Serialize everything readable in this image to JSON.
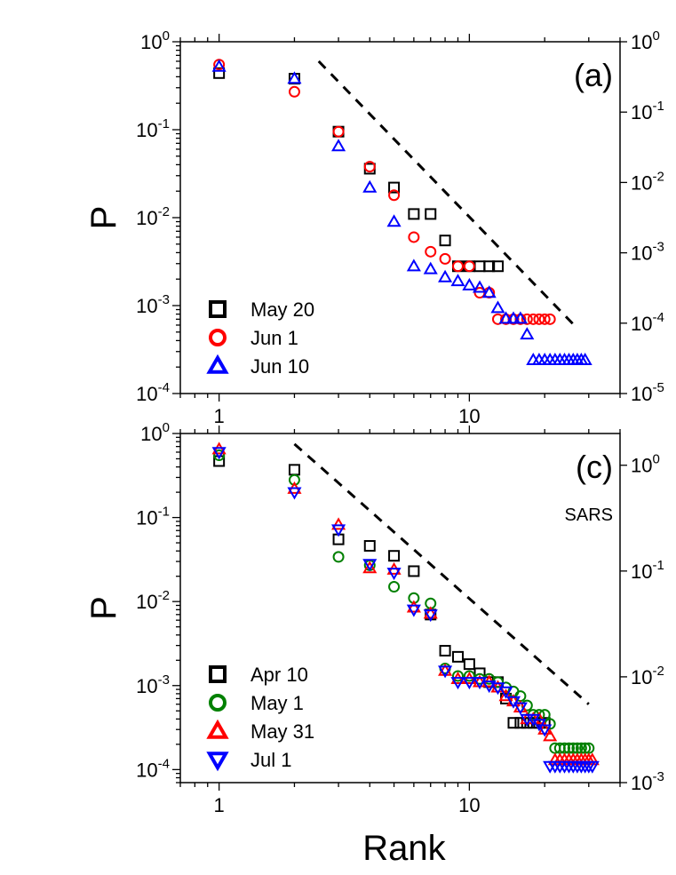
{
  "figure": {
    "xlabel": "Rank"
  },
  "chart_data": [
    {
      "panel": "(a)",
      "type": "scatter",
      "xscale": "log",
      "yscale": "log",
      "xlim": [
        0.7,
        40
      ],
      "ylim": [
        0.0001,
        1
      ],
      "xlabel": "",
      "ylabel": "P",
      "x_ticks": [
        "1",
        "10"
      ],
      "y_ticks": [
        {
          "base": "10",
          "exp": "-4"
        },
        {
          "base": "10",
          "exp": "-3"
        },
        {
          "base": "10",
          "exp": "-2"
        },
        {
          "base": "10",
          "exp": "-1"
        },
        {
          "base": "10",
          "exp": "0"
        }
      ],
      "right_ticks": [
        {
          "base": "10",
          "exp": "-5"
        },
        {
          "base": "10",
          "exp": "-4"
        },
        {
          "base": "10",
          "exp": "-3"
        },
        {
          "base": "10",
          "exp": "-2"
        },
        {
          "base": "10",
          "exp": "-1"
        },
        {
          "base": "10",
          "exp": "0"
        }
      ],
      "annotation": "(a)",
      "legend_position": "bottom-left",
      "reference_line": {
        "style": "dashed",
        "from": [
          2.5,
          0.6
        ],
        "to": [
          27,
          0.00055
        ]
      },
      "series": [
        {
          "name": "May 20",
          "marker": "square",
          "color": "#000000",
          "x": [
            1,
            2,
            3,
            4,
            5,
            6,
            7,
            8,
            9,
            10,
            11,
            12,
            13
          ],
          "y": [
            0.44,
            0.38,
            0.095,
            0.036,
            0.022,
            0.011,
            0.011,
            0.0055,
            0.0028,
            0.0028,
            0.0028,
            0.0028,
            0.0028
          ]
        },
        {
          "name": "Jun 1",
          "marker": "circle",
          "color": "#ff0000",
          "x": [
            1,
            2,
            3,
            4,
            5,
            6,
            7,
            8,
            9,
            10,
            11,
            12,
            13,
            14,
            15,
            16,
            17,
            18,
            19,
            20,
            21
          ],
          "y": [
            0.55,
            0.27,
            0.095,
            0.038,
            0.018,
            0.006,
            0.0041,
            0.0034,
            0.0028,
            0.0028,
            0.0014,
            0.0014,
            0.0007,
            0.0007,
            0.0007,
            0.0007,
            0.0007,
            0.0007,
            0.0007,
            0.0007,
            0.0007
          ]
        },
        {
          "name": "Jun 10",
          "marker": "triangle-up",
          "color": "#0000ff",
          "x": [
            1,
            2,
            3,
            4,
            5,
            6,
            7,
            8,
            9,
            10,
            11,
            12,
            13,
            14,
            15,
            16,
            17,
            18,
            19,
            20,
            21,
            22,
            23,
            24,
            25,
            26,
            27,
            28,
            29
          ],
          "y": [
            0.52,
            0.38,
            0.065,
            0.022,
            0.009,
            0.0028,
            0.0026,
            0.0021,
            0.0019,
            0.0017,
            0.0016,
            0.0014,
            0.00094,
            0.00071,
            0.00071,
            0.00071,
            0.00047,
            0.00024,
            0.00024,
            0.00024,
            0.00024,
            0.00024,
            0.00024,
            0.00024,
            0.00024,
            0.00024,
            0.00024,
            0.00024,
            0.00024
          ]
        }
      ]
    },
    {
      "panel": "(c)",
      "type": "scatter",
      "xscale": "log",
      "yscale": "log",
      "xlim": [
        0.7,
        40
      ],
      "ylim": [
        7e-05,
        1
      ],
      "xlabel": "Rank",
      "ylabel": "P",
      "x_ticks": [
        "1",
        "10"
      ],
      "y_ticks": [
        {
          "base": "10",
          "exp": "-4"
        },
        {
          "base": "10",
          "exp": "-3"
        },
        {
          "base": "10",
          "exp": "-2"
        },
        {
          "base": "10",
          "exp": "-1"
        },
        {
          "base": "10",
          "exp": "0"
        }
      ],
      "right_ticks": [
        {
          "base": "10",
          "exp": "-3"
        },
        {
          "base": "10",
          "exp": "-2"
        },
        {
          "base": "10",
          "exp": "-1"
        },
        {
          "base": "10",
          "exp": "0"
        }
      ],
      "annotation": "(c)",
      "sub_annotation": "SARS",
      "legend_position": "bottom-left",
      "reference_line": {
        "style": "dashed",
        "from": [
          2,
          0.75
        ],
        "to": [
          30,
          0.0006
        ]
      },
      "series": [
        {
          "name": "Apr 10",
          "marker": "square",
          "color": "#000000",
          "x": [
            1,
            2,
            3,
            4,
            5,
            6,
            7,
            8,
            9,
            10,
            11,
            12,
            13,
            14,
            15,
            16,
            17,
            18,
            19,
            20
          ],
          "y": [
            0.47,
            0.37,
            0.055,
            0.046,
            0.035,
            0.023,
            0.007,
            0.0026,
            0.0022,
            0.0018,
            0.0014,
            0.0011,
            0.0011,
            0.0007,
            0.00036,
            0.00036,
            0.00036,
            0.00036,
            0.00036,
            0.00036
          ]
        },
        {
          "name": "May 1",
          "marker": "circle",
          "color": "#008000",
          "x": [
            1,
            2,
            3,
            4,
            5,
            6,
            7,
            8,
            9,
            10,
            11,
            12,
            13,
            14,
            15,
            16,
            17,
            18,
            19,
            20,
            21,
            22,
            23,
            24,
            25,
            26,
            27,
            28,
            29,
            30
          ],
          "y": [
            0.55,
            0.28,
            0.034,
            0.027,
            0.015,
            0.011,
            0.0095,
            0.0016,
            0.0013,
            0.0013,
            0.0012,
            0.0012,
            0.0011,
            0.00095,
            0.00085,
            0.00075,
            0.00058,
            0.00045,
            0.00045,
            0.00045,
            0.00035,
            0.00018,
            0.00018,
            0.00018,
            0.00018,
            0.00018,
            0.00018,
            0.00018,
            0.00018,
            0.00018
          ]
        },
        {
          "name": "May 31",
          "marker": "triangle-up",
          "color": "#ff0000",
          "x": [
            1,
            2,
            3,
            4,
            5,
            6,
            7,
            8,
            9,
            10,
            11,
            12,
            13,
            14,
            15,
            16,
            17,
            18,
            19,
            20,
            21,
            22,
            23,
            24,
            25,
            26,
            27,
            28,
            29,
            30,
            31
          ],
          "y": [
            0.65,
            0.22,
            0.082,
            0.025,
            0.024,
            0.0085,
            0.0072,
            0.0015,
            0.0012,
            0.0012,
            0.0011,
            0.0011,
            0.00095,
            0.00075,
            0.00065,
            0.00055,
            0.0004,
            0.0004,
            0.0004,
            0.0003,
            0.00025,
            0.00013,
            0.00013,
            0.00013,
            0.00013,
            0.00013,
            0.00013,
            0.00013,
            0.00013,
            0.00013,
            0.00013
          ]
        },
        {
          "name": "Jul 1",
          "marker": "triangle-down",
          "color": "#0000ff",
          "x": [
            1,
            2,
            3,
            4,
            5,
            6,
            7,
            8,
            9,
            10,
            11,
            12,
            13,
            14,
            15,
            16,
            17,
            18,
            19,
            20,
            21,
            22,
            23,
            24,
            25,
            26,
            27,
            28,
            29,
            30,
            31
          ],
          "y": [
            0.6,
            0.2,
            0.072,
            0.028,
            0.022,
            0.008,
            0.007,
            0.0015,
            0.0011,
            0.0011,
            0.0011,
            0.001,
            0.00095,
            0.00085,
            0.00065,
            0.00055,
            0.0004,
            0.0004,
            0.00035,
            0.0003,
            0.00011,
            0.00011,
            0.00011,
            0.00011,
            0.00011,
            0.00011,
            0.00011,
            0.00011,
            0.00011,
            0.00011,
            0.00011
          ]
        }
      ]
    }
  ]
}
